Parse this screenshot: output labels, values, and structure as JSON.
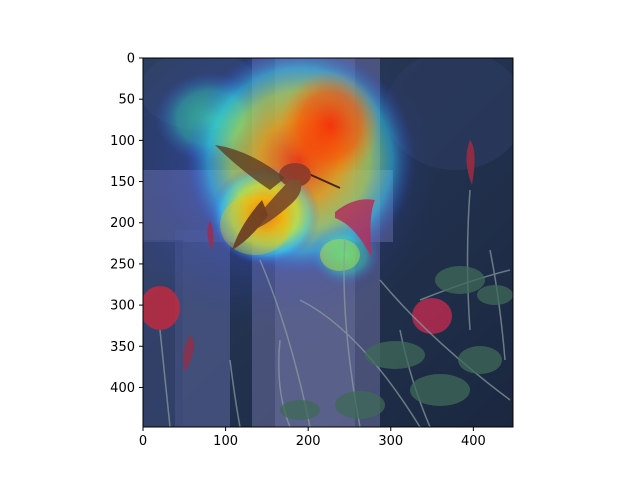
{
  "figure": {
    "description_free": true,
    "background": "#ffffff",
    "image": {
      "subject_icons": [
        "hummingbird",
        "flowers",
        "wooden-fence"
      ],
      "overlay_colormap": "jet",
      "overlay_opacity": 0.5
    },
    "axes": {
      "x": {
        "range": [
          0,
          448
        ],
        "ticks": [
          0,
          100,
          200,
          300,
          400
        ],
        "tick_labels": [
          "0",
          "100",
          "200",
          "300",
          "400"
        ]
      },
      "y": {
        "range": [
          0,
          448
        ],
        "inverted": true,
        "ticks": [
          0,
          50,
          100,
          150,
          200,
          250,
          300,
          350,
          400
        ],
        "tick_labels": [
          "0",
          "50",
          "100",
          "150",
          "200",
          "250",
          "300",
          "350",
          "400"
        ]
      }
    }
  }
}
